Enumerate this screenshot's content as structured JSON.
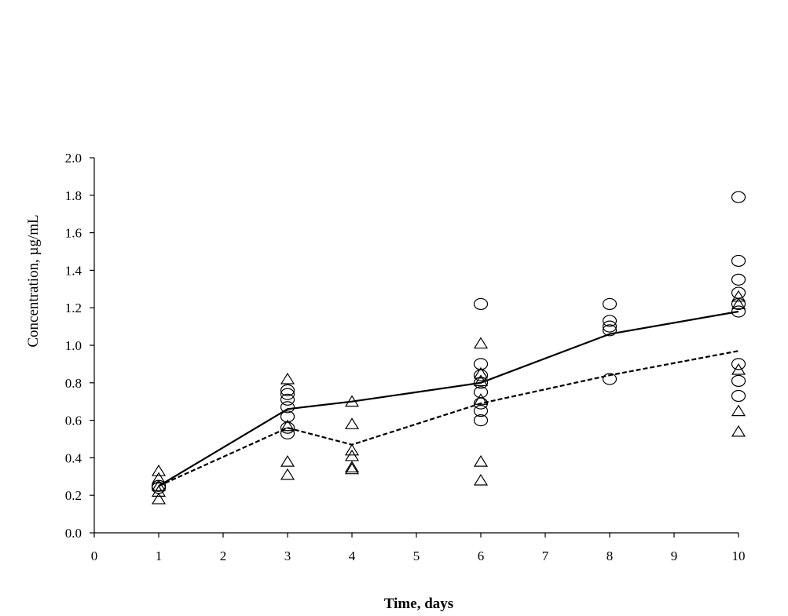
{
  "chart_data": {
    "type": "scatter",
    "xlabel": "Time, days",
    "ylabel": "Concentration, µg/mL",
    "xlim": [
      0,
      10
    ],
    "ylim": [
      0,
      2.0
    ],
    "x_ticks": [
      0,
      1,
      2,
      3,
      4,
      5,
      6,
      7,
      8,
      9,
      10
    ],
    "y_ticks": [
      "0.0",
      "0.2",
      "0.4",
      "0.6",
      "0.8",
      "1.0",
      "1.2",
      "1.4",
      "1.6",
      "1.8",
      "2.0"
    ],
    "grid": false,
    "series": [
      {
        "marker": "circle",
        "points": [
          [
            1,
            0.25
          ],
          [
            1,
            0.24
          ],
          [
            3,
            0.76
          ],
          [
            3,
            0.74
          ],
          [
            3,
            0.71
          ],
          [
            3,
            0.67
          ],
          [
            3,
            0.62
          ],
          [
            3,
            0.56
          ],
          [
            3,
            0.53
          ],
          [
            6,
            1.22
          ],
          [
            6,
            0.9
          ],
          [
            6,
            0.84
          ],
          [
            6,
            0.8
          ],
          [
            6,
            0.75
          ],
          [
            6,
            0.69
          ],
          [
            6,
            0.65
          ],
          [
            6,
            0.6
          ],
          [
            8,
            1.22
          ],
          [
            8,
            1.13
          ],
          [
            8,
            1.1
          ],
          [
            8,
            1.08
          ],
          [
            8,
            0.82
          ],
          [
            10,
            1.79
          ],
          [
            10,
            1.45
          ],
          [
            10,
            1.35
          ],
          [
            10,
            1.28
          ],
          [
            10,
            1.22
          ],
          [
            10,
            1.18
          ],
          [
            10,
            0.9
          ],
          [
            10,
            0.81
          ],
          [
            10,
            0.73
          ]
        ]
      },
      {
        "marker": "triangle",
        "points": [
          [
            1,
            0.33
          ],
          [
            1,
            0.29
          ],
          [
            1,
            0.25
          ],
          [
            1,
            0.22
          ],
          [
            1,
            0.18
          ],
          [
            3,
            0.82
          ],
          [
            3,
            0.57
          ],
          [
            3,
            0.38
          ],
          [
            3,
            0.31
          ],
          [
            4,
            0.7
          ],
          [
            4,
            0.58
          ],
          [
            4,
            0.44
          ],
          [
            4,
            0.41
          ],
          [
            4,
            0.35
          ],
          [
            4,
            0.34
          ],
          [
            6,
            1.01
          ],
          [
            6,
            0.85
          ],
          [
            6,
            0.81
          ],
          [
            6,
            0.71
          ],
          [
            6,
            0.38
          ],
          [
            6,
            0.28
          ],
          [
            10,
            1.26
          ],
          [
            10,
            1.22
          ],
          [
            10,
            0.87
          ],
          [
            10,
            0.65
          ],
          [
            10,
            0.54
          ]
        ]
      },
      {
        "line": "solid",
        "points": [
          [
            1,
            0.25
          ],
          [
            3,
            0.66
          ],
          [
            4,
            0.7
          ],
          [
            6,
            0.8
          ],
          [
            8,
            1.06
          ],
          [
            10,
            1.18
          ]
        ]
      },
      {
        "line": "dashed",
        "points": [
          [
            1,
            0.25
          ],
          [
            3,
            0.56
          ],
          [
            4,
            0.47
          ],
          [
            6,
            0.69
          ],
          [
            8,
            0.84
          ],
          [
            10,
            0.97
          ]
        ]
      }
    ]
  }
}
